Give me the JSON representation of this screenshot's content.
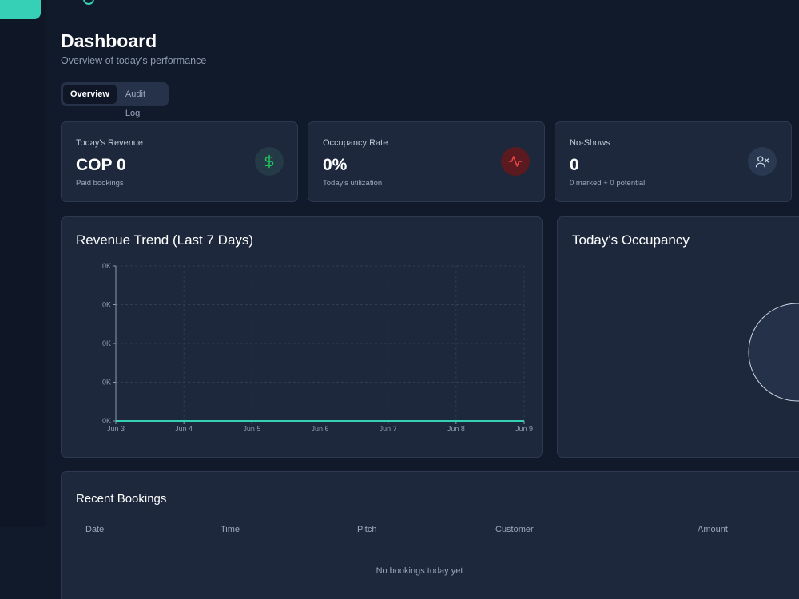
{
  "header": {
    "title": "Dashboard",
    "subtitle": "Overview of today's performance"
  },
  "tabs": [
    {
      "label": "Overview",
      "active": true
    },
    {
      "label": "Audit Log",
      "active": false
    }
  ],
  "stats": [
    {
      "label": "Today's Revenue",
      "value": "COP 0",
      "sub": "Paid bookings",
      "icon": "dollar-icon",
      "icon_color": "#22c55e"
    },
    {
      "label": "Occupancy Rate",
      "value": "0%",
      "sub": "Today's utilization",
      "icon": "activity-icon",
      "icon_color": "#ef4444"
    },
    {
      "label": "No-Shows",
      "value": "0",
      "sub": "0 marked + 0 potential",
      "icon": "user-x-icon",
      "icon_color": "#cbd5e1"
    }
  ],
  "revenue_chart": {
    "title": "Revenue Trend (Last 7 Days)"
  },
  "chart_data": {
    "type": "line",
    "title": "Revenue Trend (Last 7 Days)",
    "categories": [
      "Jun 3",
      "Jun 4",
      "Jun 5",
      "Jun 6",
      "Jun 7",
      "Jun 8",
      "Jun 9"
    ],
    "values": [
      0,
      0,
      0,
      0,
      0,
      0,
      0
    ],
    "y_ticks": [
      "0K",
      "0K",
      "0K",
      "0K",
      "0K"
    ],
    "xlabel": "",
    "ylabel": "",
    "line_color": "#35d0b5",
    "grid": true
  },
  "occupancy": {
    "title": "Today's Occupancy"
  },
  "bookings": {
    "title": "Recent Bookings",
    "columns": [
      "Date",
      "Time",
      "Pitch",
      "Customer",
      "Amount"
    ],
    "empty_text": "No bookings today yet"
  },
  "colors": {
    "accent": "#35d0b5",
    "background": "#111a2b",
    "card": "#1d283c"
  }
}
